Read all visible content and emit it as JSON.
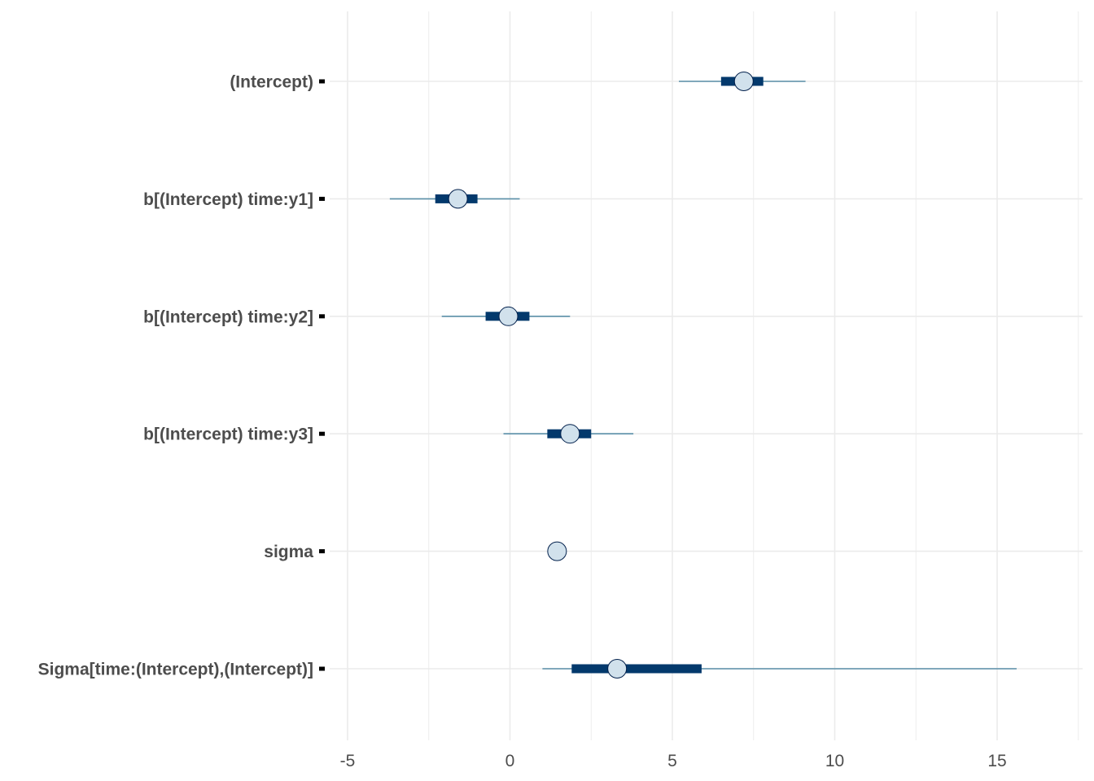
{
  "chart_data": {
    "type": "interval",
    "title": "",
    "xlabel": "",
    "ylabel": "",
    "xlim": [
      -5.5,
      17.5
    ],
    "x_ticks": [
      -5,
      0,
      5,
      10,
      15
    ],
    "x_tick_labels": [
      "-5",
      "0",
      "5",
      "10",
      "15"
    ],
    "grid": true,
    "colors": {
      "outer_interval": "#5a8fa8",
      "inner_interval": "#03396c",
      "point_fill": "#d1e1ec",
      "point_stroke": "#011f4b",
      "grid": "#ebebeb",
      "label": "#4d4d4d"
    },
    "parameters": [
      {
        "label": "(Intercept)",
        "outer": [
          5.2,
          9.1
        ],
        "inner": [
          6.5,
          7.8
        ],
        "point": 7.2
      },
      {
        "label": "b[(Intercept) time:y1]",
        "outer": [
          -3.7,
          0.3
        ],
        "inner": [
          -2.3,
          -1.0
        ],
        "point": -1.6
      },
      {
        "label": "b[(Intercept) time:y2]",
        "outer": [
          -2.1,
          1.85
        ],
        "inner": [
          -0.75,
          0.6
        ],
        "point": -0.05
      },
      {
        "label": "b[(Intercept) time:y3]",
        "outer": [
          -0.2,
          3.8
        ],
        "inner": [
          1.15,
          2.5
        ],
        "point": 1.85
      },
      {
        "label": "sigma",
        "outer": [
          1.35,
          1.6
        ],
        "inner": [
          1.4,
          1.55
        ],
        "point": 1.45
      },
      {
        "label": "Sigma[time:(Intercept),(Intercept)]",
        "outer": [
          1.0,
          15.6
        ],
        "inner": [
          1.9,
          5.9
        ],
        "point": 3.3
      }
    ]
  }
}
